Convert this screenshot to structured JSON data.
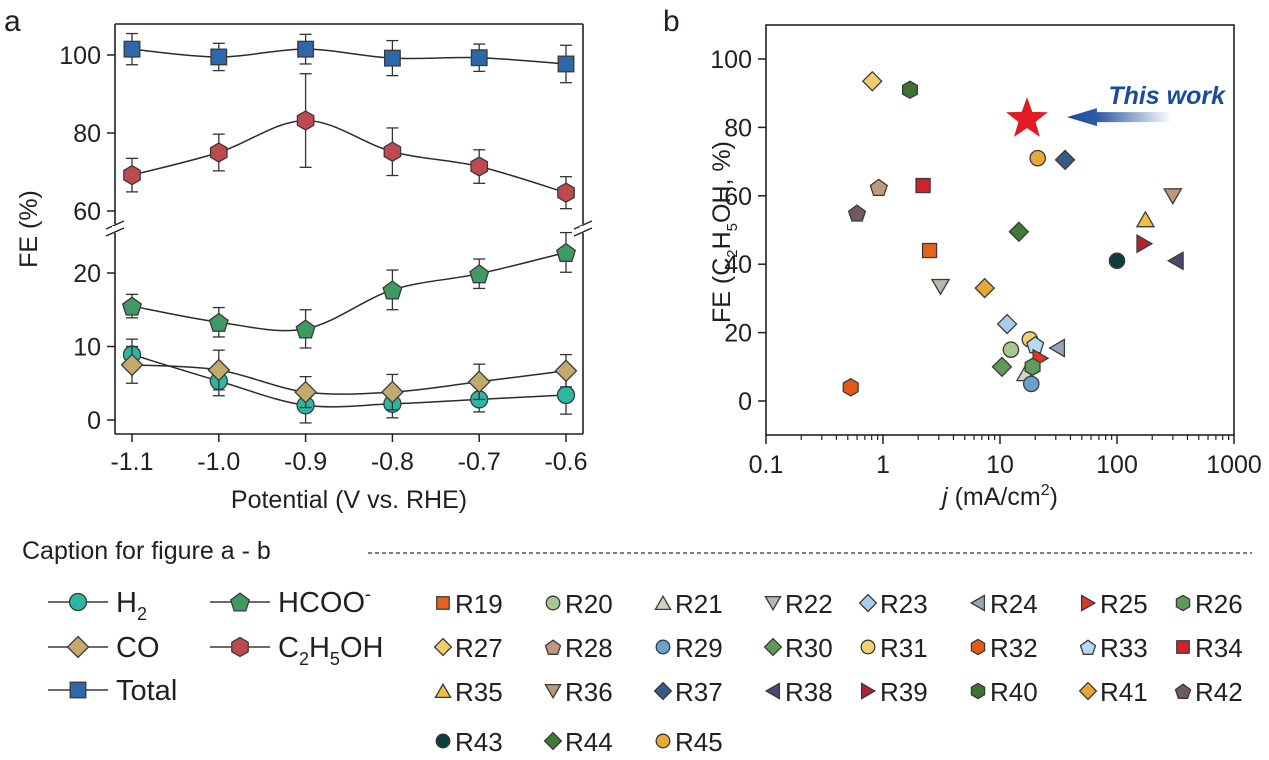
{
  "panel_labels": {
    "a": "a",
    "b": "b"
  },
  "caption": {
    "title": "Caption for figure a - b"
  },
  "colors": {
    "H2": "#2bb7a2",
    "CO": "#c3a96c",
    "Total": "#2f68a8",
    "HCOO": "#3f9a62",
    "C2H5OH": "#bd4a4f",
    "star": "#e01b24",
    "this_work": "#1a4b9c",
    "axis": "#231f20"
  },
  "legend_a": [
    {
      "key": "H2",
      "label": "H",
      "sub": "2",
      "sup": "",
      "marker": "circle"
    },
    {
      "key": "HCOO",
      "label": "HCOO",
      "sub": "",
      "sup": "-",
      "marker": "pentagon"
    },
    {
      "key": "CO",
      "label": "CO",
      "sub": "",
      "sup": "",
      "marker": "diamond"
    },
    {
      "key": "C2H5OH",
      "label": "C2H5OH",
      "sub": "",
      "sup": "",
      "marker": "hexagon"
    },
    {
      "key": "Total",
      "label": "Total",
      "sub": "",
      "sup": "",
      "marker": "square"
    }
  ],
  "legend_b": [
    {
      "label": "R19",
      "marker": "square",
      "color": "#e8621c"
    },
    {
      "label": "R20",
      "marker": "circle",
      "color": "#a6c98f"
    },
    {
      "label": "R21",
      "marker": "triangle-up",
      "color": "#cfd3c4"
    },
    {
      "label": "R22",
      "marker": "triangle-down",
      "color": "#bdb5ad"
    },
    {
      "label": "R23",
      "marker": "diamond",
      "color": "#a8cdee"
    },
    {
      "label": "R24",
      "marker": "triangle-left",
      "color": "#97a6b0"
    },
    {
      "label": "R25",
      "marker": "triangle-right",
      "color": "#d9382a"
    },
    {
      "label": "R26",
      "marker": "hexagon",
      "color": "#5e9c5a"
    },
    {
      "label": "R27",
      "marker": "diamond",
      "color": "#f2cd6a"
    },
    {
      "label": "R28",
      "marker": "pentagon",
      "color": "#c09a7e"
    },
    {
      "label": "R29",
      "marker": "circle",
      "color": "#6a9fd1"
    },
    {
      "label": "R30",
      "marker": "diamond",
      "color": "#5f9a55"
    },
    {
      "label": "R31",
      "marker": "circle",
      "color": "#f3cf72"
    },
    {
      "label": "R32",
      "marker": "hexagon",
      "color": "#e35a17"
    },
    {
      "label": "R33",
      "marker": "pentagon",
      "color": "#b6d8f2"
    },
    {
      "label": "R34",
      "marker": "square",
      "color": "#d0222a"
    },
    {
      "label": "R35",
      "marker": "triangle-up",
      "color": "#f1c040"
    },
    {
      "label": "R36",
      "marker": "triangle-down",
      "color": "#bb9a7e"
    },
    {
      "label": "R37",
      "marker": "diamond",
      "color": "#355b86"
    },
    {
      "label": "R38",
      "marker": "triangle-left",
      "color": "#474a6c"
    },
    {
      "label": "R39",
      "marker": "triangle-right",
      "color": "#b02230"
    },
    {
      "label": "R40",
      "marker": "hexagon",
      "color": "#3e7231"
    },
    {
      "label": "R41",
      "marker": "diamond",
      "color": "#e6a739"
    },
    {
      "label": "R42",
      "marker": "pentagon",
      "color": "#6e5a5d"
    },
    {
      "label": "R43",
      "marker": "circle",
      "color": "#0e3d40"
    },
    {
      "label": "R44",
      "marker": "diamond",
      "color": "#3f7a36"
    },
    {
      "label": "R45",
      "marker": "circle",
      "color": "#e8a93a"
    }
  ],
  "chart_data": [
    {
      "type": "line",
      "title": "",
      "xlabel": "Potential (V vs. RHE)",
      "ylabel": "FE (%)",
      "x": [
        -1.1,
        -1.0,
        -0.9,
        -0.8,
        -0.7,
        -0.6
      ],
      "x_ticks": [
        "-1.1",
        "-1.0",
        "-0.9",
        "-0.8",
        "-0.7",
        "-0.6"
      ],
      "y_axis_break": {
        "lower_range": [
          -2,
          25
        ],
        "upper_range": [
          58,
          106
        ]
      },
      "y_ticks": [
        "0",
        "10",
        "20",
        "60",
        "80",
        "100"
      ],
      "grid": false,
      "series": [
        {
          "name": "Total",
          "key": "Total",
          "values": [
            101.5,
            99.5,
            101.5,
            99.2,
            99.3,
            97.7
          ],
          "errors": [
            4.0,
            3.5,
            3.8,
            4.5,
            3.5,
            4.8
          ]
        },
        {
          "name": "C2H5OH",
          "key": "C2H5OH",
          "values": [
            69.2,
            75.0,
            83.2,
            75.2,
            71.4,
            64.7
          ],
          "errors": [
            4.3,
            4.7,
            12.0,
            6.1,
            4.3,
            4.1
          ]
        },
        {
          "name": "HCOO-",
          "key": "HCOO",
          "values": [
            15.5,
            13.3,
            12.4,
            17.7,
            19.9,
            22.8
          ],
          "errors": [
            1.6,
            2.0,
            2.6,
            2.7,
            2.0,
            2.7
          ]
        },
        {
          "name": "CO",
          "key": "CO",
          "values": [
            7.5,
            6.8,
            3.8,
            3.8,
            5.2,
            6.7
          ],
          "errors": [
            2.5,
            2.7,
            2.1,
            2.4,
            2.4,
            2.2
          ]
        },
        {
          "name": "H2",
          "key": "H2",
          "values": [
            8.9,
            5.3,
            2.0,
            2.2,
            2.8,
            3.4
          ],
          "errors": [
            2.1,
            2.0,
            2.4,
            1.9,
            1.7,
            2.6
          ]
        }
      ]
    },
    {
      "type": "scatter",
      "title": "",
      "xlabel_italic": "j",
      "xlabel_rest": " (mA/cm",
      "xlabel_sup": "2",
      "xlabel_end": ")",
      "ylabel": "FE (C2H5OH, %)",
      "x_scale": "log",
      "xlim": [
        0.1,
        1000
      ],
      "ylim": [
        -10,
        110
      ],
      "x_ticks": [
        "0.1",
        "1",
        "10",
        "100",
        "1000"
      ],
      "y_ticks": [
        "0",
        "20",
        "40",
        "60",
        "80",
        "100"
      ],
      "grid": false,
      "annotation": {
        "text": "This work",
        "x": 17,
        "y": 83
      },
      "points": [
        {
          "label": "R19",
          "x": 2.5,
          "y": 44
        },
        {
          "label": "R20",
          "x": 12.4,
          "y": 15
        },
        {
          "label": "R21",
          "x": 16.5,
          "y": 8
        },
        {
          "label": "R22",
          "x": 3.1,
          "y": 33.5
        },
        {
          "label": "R23",
          "x": 11.5,
          "y": 22.5
        },
        {
          "label": "R24",
          "x": 31,
          "y": 15.5
        },
        {
          "label": "R25",
          "x": 22,
          "y": 12.5
        },
        {
          "label": "R26",
          "x": 19,
          "y": 10
        },
        {
          "label": "R27",
          "x": 0.81,
          "y": 93.5
        },
        {
          "label": "R28",
          "x": 0.92,
          "y": 62.5
        },
        {
          "label": "R29",
          "x": 18.5,
          "y": 5
        },
        {
          "label": "R30",
          "x": 10.4,
          "y": 10
        },
        {
          "label": "R31",
          "x": 18,
          "y": 18
        },
        {
          "label": "R32",
          "x": 0.53,
          "y": 4
        },
        {
          "label": "R33",
          "x": 20,
          "y": 16.5
        },
        {
          "label": "R34",
          "x": 2.2,
          "y": 63
        },
        {
          "label": "R35",
          "x": 175,
          "y": 53
        },
        {
          "label": "R36",
          "x": 300,
          "y": 60
        },
        {
          "label": "R37",
          "x": 36,
          "y": 70.5
        },
        {
          "label": "R38",
          "x": 320,
          "y": 41
        },
        {
          "label": "R39",
          "x": 170,
          "y": 46
        },
        {
          "label": "R40",
          "x": 1.7,
          "y": 91
        },
        {
          "label": "R41",
          "x": 7.4,
          "y": 33
        },
        {
          "label": "R42",
          "x": 0.6,
          "y": 55
        },
        {
          "label": "R43",
          "x": 100,
          "y": 41
        },
        {
          "label": "R44",
          "x": 14.5,
          "y": 49.5
        },
        {
          "label": "R45",
          "x": 21,
          "y": 71
        }
      ]
    }
  ]
}
